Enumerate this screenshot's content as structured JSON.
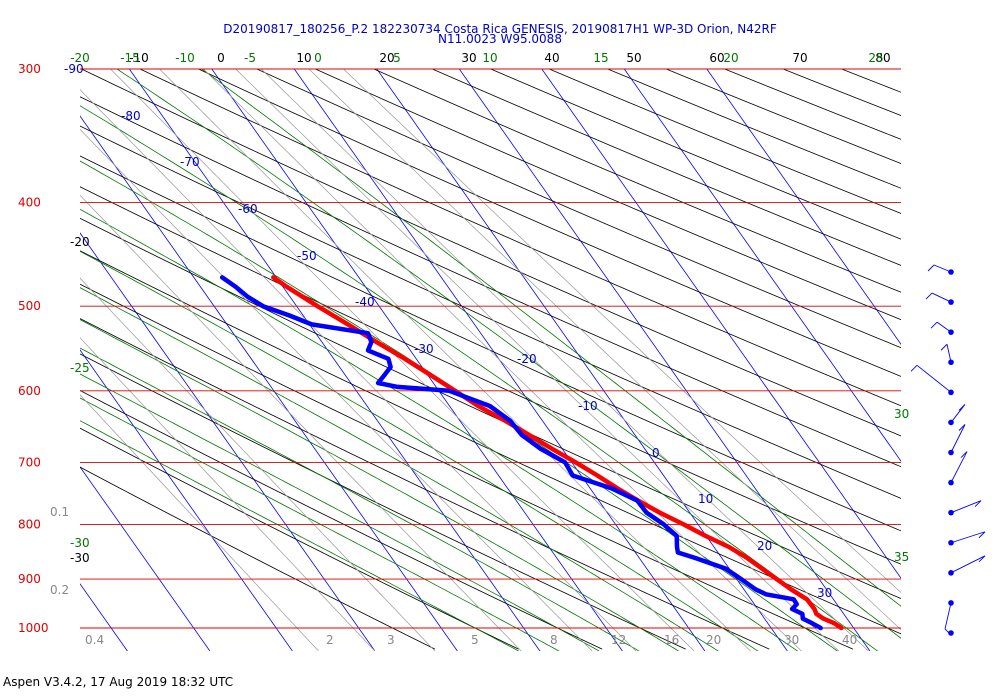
{
  "header": {
    "title_line1": "D20190817_180256_P.2 182230734 Costa Rica GENESIS, 20190817H1 WP-3D Orion, N42RF",
    "title_line2": "N11.0023 W95.0088"
  },
  "footer": {
    "text": "Aspen V3.4.2, 17 Aug 2019  18:32 UTC"
  },
  "chart_data": {
    "type": "line",
    "diagram": "skew-T log-P",
    "pressure_levels_hPa": [
      300,
      400,
      500,
      600,
      700,
      800,
      900,
      1000
    ],
    "temperature_ticks_C": [
      "-10",
      "0",
      "10",
      "20",
      "30",
      "40",
      "50",
      "60",
      "70",
      "80"
    ],
    "theta_labels_top": [
      "-20",
      "-15",
      "-10",
      "-5",
      "0",
      "5",
      "10",
      "15",
      "20",
      "25"
    ],
    "theta_labels_left": [
      "-25",
      "-30"
    ],
    "theta_labels_right": [
      "30",
      "35"
    ],
    "isotherm_labels": [
      "-90",
      "-80",
      "-70",
      "-60",
      "-50",
      "-40",
      "-30",
      "-20",
      "-10",
      "0",
      "10",
      "20",
      "30"
    ],
    "left_black_labels": [
      "-20",
      "-30"
    ],
    "mixing_ratio_labels": [
      "0.1",
      "0.2",
      "0.4",
      "2",
      "3",
      "5",
      "8",
      "12",
      "16",
      "20",
      "30",
      "40"
    ],
    "series": [
      {
        "key": "temperature",
        "color": "#ff0000",
        "points": [
          [
            1000,
            24.4
          ],
          [
            990,
            24.0
          ],
          [
            980,
            23.1
          ],
          [
            970,
            22.7
          ],
          [
            960,
            22.9
          ],
          [
            940,
            22.9
          ],
          [
            920,
            21.9
          ],
          [
            900,
            21.1
          ],
          [
            880,
            20.3
          ],
          [
            860,
            19.5
          ],
          [
            840,
            18.3
          ],
          [
            820,
            16.5
          ],
          [
            800,
            14.9
          ],
          [
            780,
            13.1
          ],
          [
            760,
            11.6
          ],
          [
            740,
            10.2
          ],
          [
            720,
            9.0
          ],
          [
            700,
            7.6
          ],
          [
            680,
            6.0
          ],
          [
            660,
            4.5
          ],
          [
            640,
            2.9
          ],
          [
            620,
            1.0
          ],
          [
            600,
            -0.4
          ],
          [
            580,
            -1.9
          ],
          [
            560,
            -3.5
          ],
          [
            540,
            -5.4
          ],
          [
            520,
            -7.2
          ],
          [
            500,
            -9.2
          ],
          [
            480,
            -11.1
          ],
          [
            470,
            -11.9
          ]
        ]
      },
      {
        "key": "dewpoint",
        "color": "#0000ff",
        "points": [
          [
            1000,
            21.9
          ],
          [
            990,
            21.3
          ],
          [
            980,
            20.6
          ],
          [
            970,
            21.0
          ],
          [
            960,
            20.2
          ],
          [
            950,
            21.2
          ],
          [
            940,
            21.3
          ],
          [
            930,
            18.4
          ],
          [
            920,
            17.6
          ],
          [
            900,
            16.8
          ],
          [
            880,
            15.9
          ],
          [
            860,
            13.2
          ],
          [
            850,
            11.6
          ],
          [
            840,
            12.0
          ],
          [
            820,
            13.0
          ],
          [
            800,
            12.5
          ],
          [
            780,
            11.5
          ],
          [
            760,
            11.5
          ],
          [
            740,
            9.5
          ],
          [
            720,
            6.0
          ],
          [
            700,
            6.3
          ],
          [
            680,
            4.6
          ],
          [
            660,
            3.6
          ],
          [
            640,
            3.5
          ],
          [
            620,
            2.4
          ],
          [
            600,
            -1.1
          ],
          [
            595,
            -7.0
          ],
          [
            590,
            -9.0
          ],
          [
            580,
            -7.5
          ],
          [
            570,
            -6.0
          ],
          [
            560,
            -5.5
          ],
          [
            550,
            -7.2
          ],
          [
            540,
            -6.0
          ],
          [
            530,
            -5.6
          ],
          [
            520,
            -11.6
          ],
          [
            510,
            -13.5
          ],
          [
            500,
            -15.8
          ],
          [
            490,
            -16.8
          ],
          [
            480,
            -17.3
          ],
          [
            470,
            -18.1
          ]
        ]
      }
    ],
    "wind_barbs": {
      "count": 13,
      "color": "#0000ff"
    }
  }
}
